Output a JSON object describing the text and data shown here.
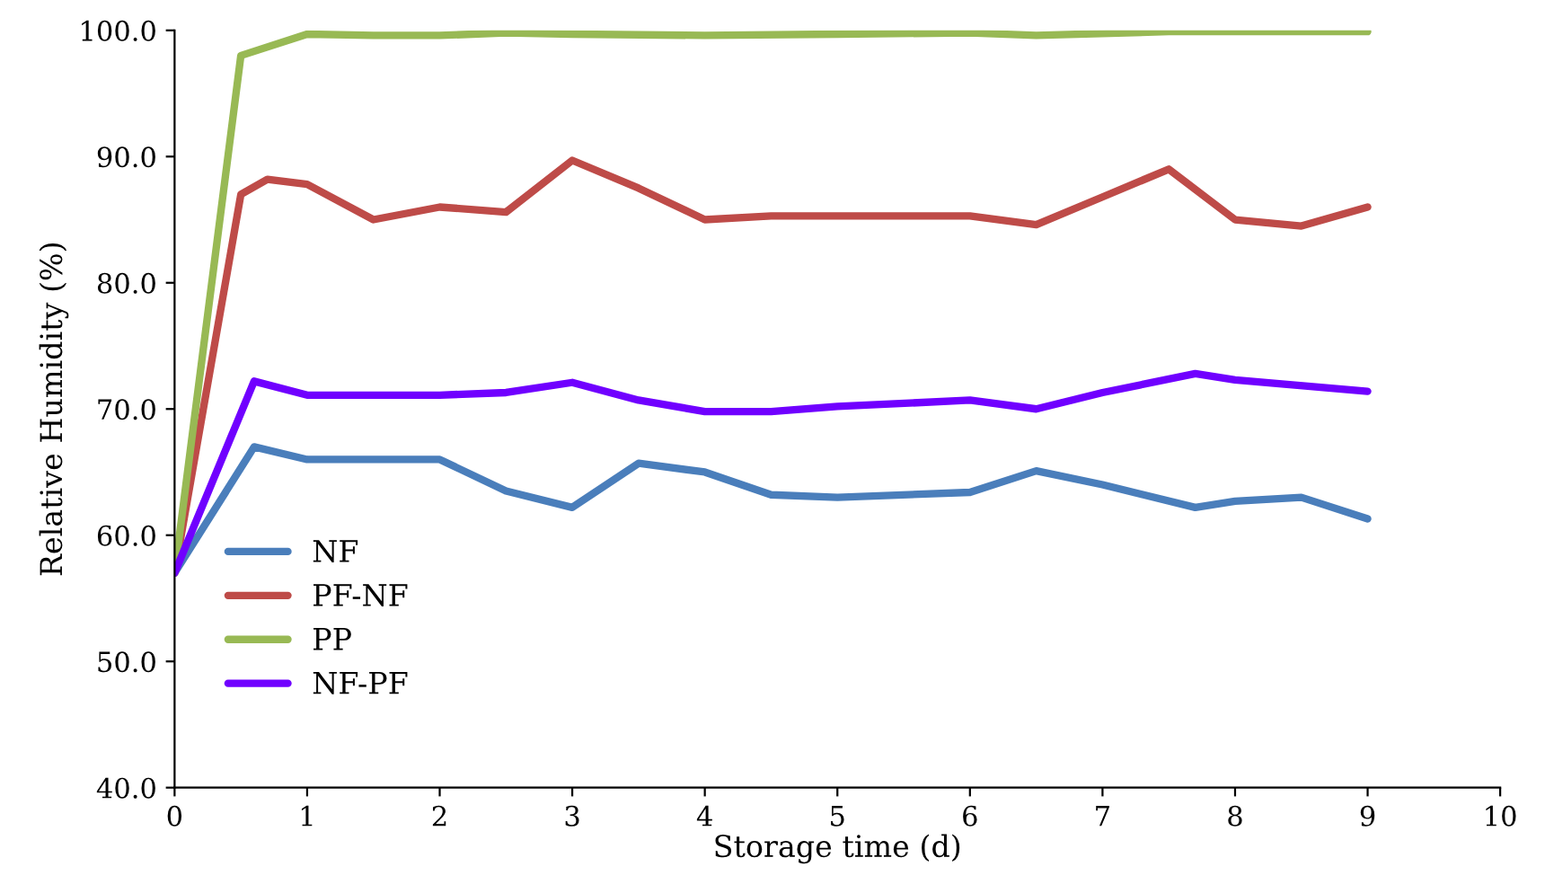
{
  "chart_data": {
    "type": "line",
    "xlabel": "Storage time (d)",
    "ylabel": "Relative Humidity (%)",
    "xlim": [
      0,
      10
    ],
    "xticks": [
      0,
      1,
      2,
      3,
      4,
      5,
      6,
      7,
      8,
      9,
      10
    ],
    "ylim": [
      40,
      100
    ],
    "yticks": [
      {
        "value": 40,
        "label": "40.0"
      },
      {
        "value": 50,
        "label": "50.0"
      },
      {
        "value": 60,
        "label": "60.0"
      },
      {
        "value": 70,
        "label": "70.0"
      },
      {
        "value": 80,
        "label": "80.0"
      },
      {
        "value": 90,
        "label": "90.0"
      },
      {
        "value": 100,
        "label": "100.0"
      }
    ],
    "grid": false,
    "legend": "bottom left",
    "marker": "none",
    "line_style": "solid",
    "series": [
      {
        "name": "NF",
        "color": "#4a7ebb",
        "x": [
          0,
          0.6,
          1,
          1.5,
          2,
          2.5,
          3,
          3.5,
          4,
          4.5,
          5,
          6,
          6.5,
          7,
          7.7,
          8,
          8.5,
          9
        ],
        "values": [
          57,
          67,
          66,
          66,
          66,
          63.5,
          62.2,
          65.7,
          65,
          63.2,
          63,
          63.4,
          65.1,
          64,
          62.2,
          62.7,
          63,
          61.3
        ]
      },
      {
        "name": "PF-NF",
        "color": "#be4b48",
        "x": [
          0,
          0.5,
          0.7,
          1,
          1.5,
          2,
          2.5,
          3,
          3.5,
          4,
          4.5,
          5,
          6,
          6.5,
          7,
          7.5,
          8,
          8.5,
          9
        ],
        "values": [
          57,
          87,
          88.2,
          87.8,
          85,
          86,
          85.6,
          89.7,
          87.5,
          85,
          85.3,
          85.3,
          85.3,
          84.6,
          86.8,
          89,
          85,
          84.5,
          86
        ]
      },
      {
        "name": "PP",
        "color": "#98b954",
        "x": [
          0,
          0.5,
          1,
          1.5,
          2,
          2.5,
          3,
          4,
          5,
          6,
          6.5,
          7.5,
          9
        ],
        "values": [
          57,
          98,
          99.7,
          99.6,
          99.6,
          99.8,
          99.7,
          99.6,
          99.7,
          99.8,
          99.6,
          99.9,
          99.9
        ]
      },
      {
        "name": "NF-PF",
        "color": "#7000ff",
        "x": [
          0,
          0.6,
          1,
          2,
          2.5,
          3,
          3.5,
          4,
          4.5,
          5,
          6,
          6.5,
          7,
          7.7,
          8,
          9
        ],
        "values": [
          57,
          72.2,
          71.1,
          71.1,
          71.3,
          72.1,
          70.7,
          69.8,
          69.8,
          70.2,
          70.7,
          70,
          71.3,
          72.8,
          72.3,
          71.4
        ]
      }
    ]
  }
}
